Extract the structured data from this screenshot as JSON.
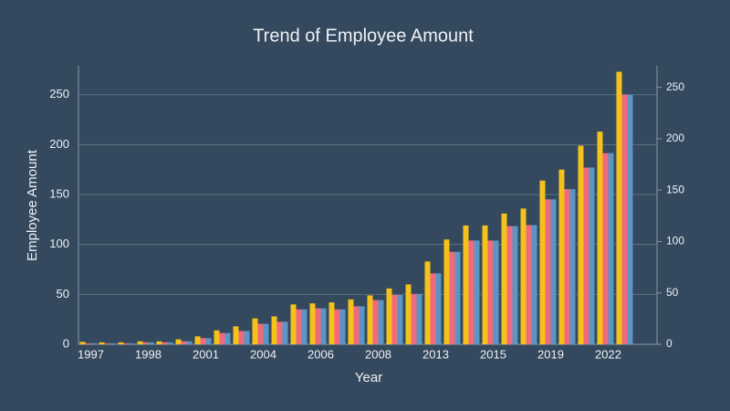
{
  "chart_data": {
    "type": "bar",
    "title": "Trend of Employee Amount",
    "x_label": "Year",
    "y_label": "Employee Amount",
    "categories": [
      "1997",
      null,
      null,
      "1998",
      null,
      null,
      "2001",
      null,
      null,
      "2004",
      null,
      null,
      "2006",
      null,
      null,
      "2008",
      null,
      null,
      "2013",
      null,
      null,
      "2015",
      null,
      null,
      "2019",
      null,
      null,
      "2022",
      null
    ],
    "series": [
      {
        "color": "#f4c21b",
        "values": [
          2.5,
          2,
          2,
          3,
          3,
          5,
          8,
          14,
          18,
          26,
          28,
          40,
          41,
          42,
          45,
          49,
          56,
          60,
          83,
          105,
          119,
          119,
          131,
          136,
          164,
          175,
          199,
          213,
          273
        ]
      },
      {
        "color": "#ee6a7c",
        "axis": "y2",
        "values": [
          1,
          1,
          1,
          2,
          2,
          3,
          6,
          11,
          13,
          20,
          22,
          34,
          35,
          34,
          37,
          43,
          48,
          49,
          69,
          90,
          101,
          101,
          115,
          116,
          141,
          151,
          172,
          186,
          243
        ]
      },
      {
        "color": "#5a95c4",
        "axis": "y2",
        "values": [
          1,
          1,
          1,
          2,
          2,
          3,
          6,
          11,
          13,
          20,
          22,
          34,
          35,
          34,
          37,
          43,
          48,
          49,
          69,
          90,
          101,
          101,
          115,
          116,
          141,
          151,
          172,
          186,
          243
        ]
      }
    ],
    "ylim": [
      0,
      279
    ],
    "yticks": [
      0,
      50,
      100,
      150,
      200,
      250
    ],
    "y2lim": [
      0,
      271
    ],
    "y2ticks": [
      0,
      50,
      100,
      150,
      200,
      250
    ],
    "grid": true
  }
}
